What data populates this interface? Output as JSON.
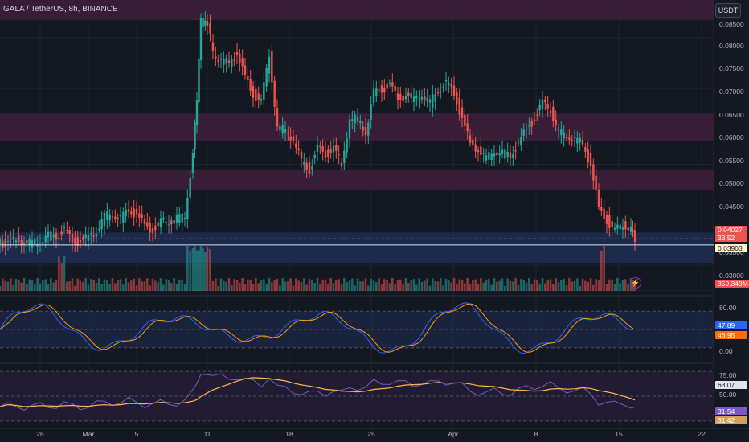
{
  "header": {
    "symbol_line": "GALA / TetherUS, 8h, BINANCE",
    "currency_button": "USDT"
  },
  "price_axis": {
    "ticks": [
      "0.08500",
      "0.08000",
      "0.07500",
      "0.07000",
      "0.06500",
      "0.06000",
      "0.05500",
      "0.05000",
      "0.04500",
      "0.03500",
      "0.03000"
    ],
    "last_price_tag": "0.04027",
    "countdown_tag": "33:52",
    "reference_price_tag": "0.03903",
    "volume_tag": "359.349M"
  },
  "stoch_axis": {
    "ticks": [
      "80.00",
      "50.00",
      "0.00"
    ],
    "k_value": "47.89",
    "d_value": "46.95"
  },
  "rsi_axis": {
    "ticks": [
      "75.00",
      "50.00",
      "25.00"
    ],
    "rsi_value": "31.54",
    "ma_value": "31.42",
    "upper_value": "63.07"
  },
  "time_axis": {
    "ticks": [
      "26",
      "Mar",
      "5",
      "11",
      "18",
      "25",
      "Apr",
      "8",
      "15",
      "22"
    ]
  },
  "icons": {
    "replay": "lightning-bolt-icon",
    "bolt_glyph": "⚡"
  },
  "colors": {
    "up": "#26a69a",
    "down": "#ef5350",
    "zone": "#3d1f3a",
    "support_zone": "#1c2b4f",
    "k_line": "#2962ff",
    "d_line": "#ff9800",
    "rsi_line": "#7e57c2",
    "rsi_ma": "#ffb74d"
  },
  "chart_data": [
    {
      "type": "candlestick",
      "title": "GALA / TetherUS, 8h, BINANCE",
      "x_labels": [
        "26",
        "Mar",
        "5",
        "11",
        "18",
        "25",
        "Apr",
        "8",
        "15",
        "22"
      ],
      "ylim": [
        0.029,
        0.0875
      ],
      "resistance_zones": [
        [
          0.0835,
          0.0875
        ],
        [
          0.0595,
          0.065
        ],
        [
          0.05,
          0.054
        ],
        [
          0.0355,
          0.0415
        ]
      ],
      "support_lines": [
        0.041,
        0.03903
      ],
      "close_points": [
        [
          0,
          0.0392
        ],
        [
          10,
          0.0393
        ],
        [
          20,
          0.0401
        ],
        [
          30,
          0.0397
        ],
        [
          40,
          0.0394
        ],
        [
          50,
          0.0402
        ],
        [
          60,
          0.0407
        ],
        [
          70,
          0.0409
        ],
        [
          80,
          0.0419
        ],
        [
          90,
          0.0398
        ],
        [
          100,
          0.0397
        ],
        [
          110,
          0.0405
        ],
        [
          120,
          0.042
        ],
        [
          130,
          0.0445
        ],
        [
          140,
          0.0455
        ],
        [
          150,
          0.0442
        ],
        [
          160,
          0.046
        ],
        [
          170,
          0.045
        ],
        [
          180,
          0.0428
        ],
        [
          190,
          0.042
        ],
        [
          200,
          0.0435
        ],
        [
          210,
          0.044
        ],
        [
          220,
          0.0441
        ],
        [
          230,
          0.045
        ],
        [
          240,
          0.057
        ],
        [
          245,
          0.068
        ],
        [
          250,
          0.083
        ],
        [
          258,
          0.083
        ],
        [
          265,
          0.077
        ],
        [
          275,
          0.0755
        ],
        [
          285,
          0.075
        ],
        [
          295,
          0.077
        ],
        [
          305,
          0.072
        ],
        [
          315,
          0.069
        ],
        [
          325,
          0.067
        ],
        [
          335,
          0.077
        ],
        [
          345,
          0.062
        ],
        [
          355,
          0.062
        ],
        [
          365,
          0.06
        ],
        [
          375,
          0.0555
        ],
        [
          385,
          0.054
        ],
        [
          395,
          0.058
        ],
        [
          405,
          0.057
        ],
        [
          415,
          0.058
        ],
        [
          425,
          0.055
        ],
        [
          435,
          0.064
        ],
        [
          445,
          0.064
        ],
        [
          455,
          0.0615
        ],
        [
          465,
          0.069
        ],
        [
          475,
          0.07
        ],
        [
          485,
          0.0705
        ],
        [
          495,
          0.068
        ],
        [
          505,
          0.0685
        ],
        [
          515,
          0.068
        ],
        [
          525,
          0.069
        ],
        [
          535,
          0.067
        ],
        [
          545,
          0.07
        ],
        [
          555,
          0.071
        ],
        [
          565,
          0.069
        ],
        [
          575,
          0.064
        ],
        [
          585,
          0.059
        ],
        [
          595,
          0.058
        ],
        [
          605,
          0.056
        ],
        [
          615,
          0.058
        ],
        [
          625,
          0.057
        ],
        [
          635,
          0.057
        ],
        [
          645,
          0.059
        ],
        [
          655,
          0.062
        ],
        [
          665,
          0.064
        ],
        [
          675,
          0.067
        ],
        [
          685,
          0.066
        ],
        [
          695,
          0.061
        ],
        [
          705,
          0.061
        ],
        [
          715,
          0.06
        ],
        [
          725,
          0.059
        ],
        [
          735,
          0.055
        ],
        [
          745,
          0.046
        ],
        [
          755,
          0.044
        ],
        [
          765,
          0.0415
        ],
        [
          775,
          0.0435
        ],
        [
          785,
          0.042
        ],
        [
          790,
          0.04027
        ]
      ]
    },
    {
      "type": "bar",
      "title": "Volume",
      "value": "359.349M"
    },
    {
      "type": "line",
      "title": "Stochastic",
      "ylim": [
        0,
        100
      ],
      "levels": [
        80,
        50,
        20
      ],
      "k": 47.89,
      "d": 46.95
    },
    {
      "type": "line",
      "title": "RSI",
      "ylim": [
        25,
        75
      ],
      "levels": [
        75,
        50,
        25
      ],
      "rsi": 31.54,
      "ma": 31.42,
      "upper": 63.07
    }
  ]
}
